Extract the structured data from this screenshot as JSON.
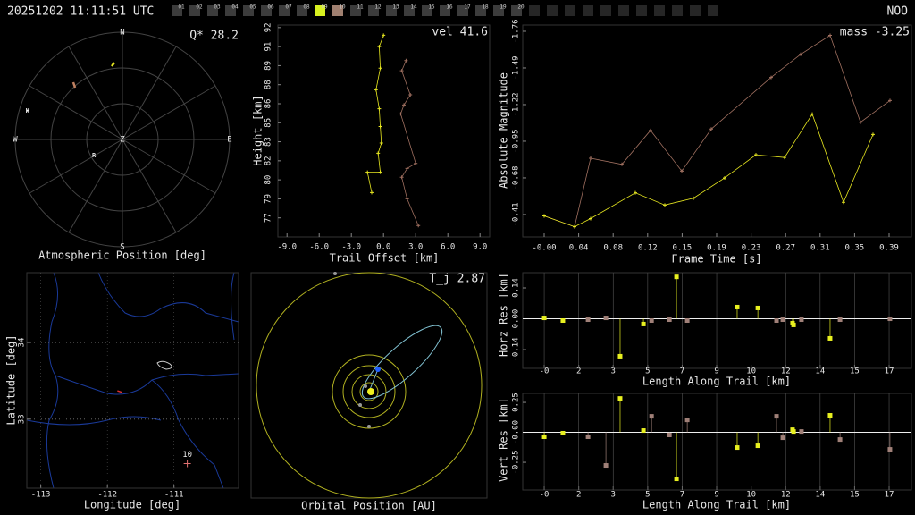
{
  "header": {
    "timestamp": "20251202 11:11:51 UTC",
    "station": "NOO",
    "frames": [
      "01",
      "02",
      "03",
      "04",
      "05",
      "06",
      "07",
      "08",
      "09",
      "10",
      "11",
      "12",
      "13",
      "14",
      "15",
      "16",
      "17",
      "18",
      "19",
      "20"
    ]
  },
  "chart_data": [
    {
      "type": "polar",
      "title": "Atmospheric Position [deg]",
      "annotation": "Q* 28.2",
      "directions": [
        "N",
        "E",
        "S",
        "W"
      ],
      "zenith_label": "Z",
      "markers": [
        {
          "label": "H",
          "az": 286.8,
          "zen": 83.3
        },
        {
          "label": "R",
          "az": 240.6,
          "zen": 27.5
        }
      ],
      "series": [
        {
          "color": "#e8e820",
          "az": [
            351.7,
            354.0
          ],
          "zen": [
            62.1,
            64.9
          ]
        },
        {
          "color": "#c08060",
          "az": [
            319.3,
            317.6
          ],
          "zen": [
            63.3,
            58.9
          ]
        }
      ]
    },
    {
      "type": "line",
      "xlabel": "Trail Offset [km]",
      "ylabel": "Height [km]",
      "annotation": "vel 41.6",
      "xlim": [
        -9.85,
        9.9
      ],
      "ylim": [
        75.5,
        92.2
      ],
      "xticks": [
        {
          "value": -9,
          "label": "-9.0"
        },
        {
          "value": -6,
          "label": "-6.0"
        },
        {
          "value": -3,
          "label": "-3.0"
        },
        {
          "value": 0,
          "label": "0.0"
        },
        {
          "value": 3,
          "label": "3.0"
        },
        {
          "value": 6,
          "label": "6.0"
        },
        {
          "value": 9,
          "label": "9.0"
        }
      ],
      "yticks": [
        {
          "value": 77.0,
          "label": "77"
        },
        {
          "value": 78.5,
          "label": "79"
        },
        {
          "value": 80.0,
          "label": "80"
        },
        {
          "value": 81.5,
          "label": "82"
        },
        {
          "value": 83.0,
          "label": "83"
        },
        {
          "value": 84.5,
          "label": "85"
        },
        {
          "value": 86.0,
          "label": "86"
        },
        {
          "value": 87.5,
          "label": "88"
        },
        {
          "value": 89.0,
          "label": "89"
        },
        {
          "value": 90.5,
          "label": "91"
        },
        {
          "value": 92.0,
          "label": "92"
        }
      ],
      "series": [
        {
          "color": "#e8e820",
          "x": [
            0.0,
            -0.4,
            -0.3,
            -0.7,
            -0.4,
            -0.3,
            -0.2,
            -0.5,
            -0.3,
            -1.5,
            -1.1
          ],
          "values": [
            91.4,
            90.5,
            88.8,
            87.1,
            85.6,
            84.2,
            82.9,
            82.1,
            80.6,
            80.6,
            79.0
          ]
        },
        {
          "color": "#a07060",
          "x": [
            2.1,
            1.7,
            2.5,
            1.9,
            1.6,
            3.0,
            2.2,
            1.7,
            2.2,
            3.25
          ],
          "values": [
            89.4,
            88.6,
            86.7,
            85.9,
            85.2,
            81.3,
            80.9,
            80.2,
            78.5,
            76.4
          ]
        }
      ]
    },
    {
      "type": "line",
      "xlabel": "Frame Time [s]",
      "ylabel": "Absolute Magnitude",
      "annotation": "mass -3.25",
      "xlim": [
        -0.024,
        0.411
      ],
      "ylim": [
        -0.245,
        -1.806
      ],
      "xticks": [
        {
          "value": 0,
          "label": "-0.00"
        },
        {
          "value": 0.0386,
          "label": "0.04"
        },
        {
          "value": 0.0772,
          "label": "0.08"
        },
        {
          "value": 0.1158,
          "label": "0.12"
        },
        {
          "value": 0.1544,
          "label": "0.15"
        },
        {
          "value": 0.193,
          "label": "0.19"
        },
        {
          "value": 0.2316,
          "label": "0.23"
        },
        {
          "value": 0.2702,
          "label": "0.27"
        },
        {
          "value": 0.3088,
          "label": "0.31"
        },
        {
          "value": 0.3474,
          "label": "0.35"
        },
        {
          "value": 0.386,
          "label": "0.39"
        }
      ],
      "yticks": [
        -1.76,
        -1.49,
        -1.22,
        -0.95,
        -0.68,
        -0.41
      ],
      "series": [
        {
          "color": "#a07060",
          "x": [
            0,
            0.034,
            0.052,
            0.087,
            0.119,
            0.154,
            0.187,
            0.254,
            0.287,
            0.32,
            0.354,
            0.387
          ],
          "values": [
            -0.4,
            -0.32,
            -0.825,
            -0.78,
            -1.03,
            -0.73,
            -1.04,
            -1.42,
            -1.59,
            -1.73,
            -1.09,
            -1.25
          ]
        },
        {
          "color": "#e8e820",
          "x": [
            0,
            0.034,
            0.052,
            0.102,
            0.135,
            0.167,
            0.202,
            0.237,
            0.269,
            0.3,
            0.335,
            0.368
          ],
          "values": [
            -0.4,
            -0.32,
            -0.38,
            -0.57,
            -0.48,
            -0.53,
            -0.68,
            -0.85,
            -0.83,
            -1.15,
            -0.5,
            -1.0
          ]
        }
      ]
    },
    {
      "type": "map",
      "xlabel": "Longitude [deg]",
      "ylabel": "Latitude [deg]",
      "grid": true,
      "xlim": [
        -113.21,
        -110.03
      ],
      "ylim": [
        32.1,
        34.91
      ],
      "xticks": [
        -113,
        -112,
        -111
      ],
      "yticks": [
        33,
        34
      ],
      "stations": [
        {
          "label": "10",
          "lon": -110.8,
          "lat": 32.42
        }
      ],
      "series": [
        {
          "color": "#e03030",
          "lon": [
            -111.85,
            -111.78
          ],
          "lat": [
            33.37,
            33.35
          ]
        }
      ]
    },
    {
      "type": "orbit",
      "title": "Orbital Position [AU]",
      "annotation": "T_j 2.87"
    },
    {
      "type": "stem",
      "xlabel": "Length Along Trail [km]",
      "ylabel": "Horz Res [km]",
      "grid": true,
      "xlim": [
        -1.06,
        18.1
      ],
      "ylim": [
        -0.225,
        0.209
      ],
      "xticks": [
        {
          "value": 0,
          "label": "-0"
        },
        {
          "value": 1.7,
          "label": "2"
        },
        {
          "value": 3.4,
          "label": "3"
        },
        {
          "value": 5.1,
          "label": "5"
        },
        {
          "value": 6.8,
          "label": "7"
        },
        {
          "value": 8.5,
          "label": "9"
        },
        {
          "value": 10.2,
          "label": "10"
        },
        {
          "value": 11.9,
          "label": "12"
        },
        {
          "value": 13.6,
          "label": "14"
        },
        {
          "value": 15.3,
          "label": "15"
        },
        {
          "value": 17.0,
          "label": "17"
        }
      ],
      "yticks": [
        0.14,
        {
          "value": 0,
          "label": "0.00"
        },
        -0.14
      ],
      "series": [
        {
          "color": "#e8f020",
          "x": [
            0,
            0.92,
            3.74,
            4.89,
            6.52,
            9.51,
            10.53,
            12.24,
            12.29,
            14.09
          ],
          "values": [
            0.004,
            -0.008,
            -0.17,
            -0.024,
            0.19,
            0.053,
            0.049,
            -0.02,
            -0.028,
            -0.089
          ]
        },
        {
          "color": "#a08078",
          "x": [
            2.16,
            3.04,
            5.29,
            6.17,
            7.05,
            11.45,
            11.76,
            12.68,
            14.58,
            17.04
          ],
          "values": [
            -0.004,
            0.004,
            -0.008,
            -0.004,
            -0.008,
            -0.008,
            -0.004,
            -0.004,
            -0.004,
            0.0
          ]
        }
      ]
    },
    {
      "type": "stem",
      "xlabel": "Length Along Trail [km]",
      "ylabel": "Vert Res [km]",
      "grid": true,
      "xlim": [
        -1.06,
        18.1
      ],
      "ylim": [
        -0.481,
        0.325
      ],
      "xticks": [
        {
          "value": 0,
          "label": "-0"
        },
        {
          "value": 1.7,
          "label": "2"
        },
        {
          "value": 3.4,
          "label": "3"
        },
        {
          "value": 5.1,
          "label": "5"
        },
        {
          "value": 6.8,
          "label": "7"
        },
        {
          "value": 8.5,
          "label": "9"
        },
        {
          "value": 10.2,
          "label": "10"
        },
        {
          "value": 11.9,
          "label": "12"
        },
        {
          "value": 13.6,
          "label": "14"
        },
        {
          "value": 15.3,
          "label": "15"
        },
        {
          "value": 17.0,
          "label": "17"
        }
      ],
      "yticks": [
        0.25,
        {
          "value": 0,
          "label": "-0.00"
        },
        -0.25
      ],
      "series": [
        {
          "color": "#e8f020",
          "x": [
            0,
            0.92,
            3.74,
            4.89,
            6.52,
            9.51,
            10.53,
            12.24,
            12.29,
            14.09
          ],
          "values": [
            -0.037,
            -0.007,
            0.283,
            0.015,
            -0.388,
            -0.127,
            -0.112,
            0.022,
            0.007,
            0.142
          ]
        },
        {
          "color": "#a08078",
          "x": [
            2.16,
            3.04,
            5.29,
            6.17,
            7.05,
            11.45,
            11.76,
            12.68,
            14.58,
            17.04
          ],
          "values": [
            -0.037,
            -0.276,
            0.134,
            -0.022,
            0.104,
            0.134,
            -0.045,
            0.007,
            -0.06,
            -0.142
          ]
        }
      ]
    }
  ]
}
